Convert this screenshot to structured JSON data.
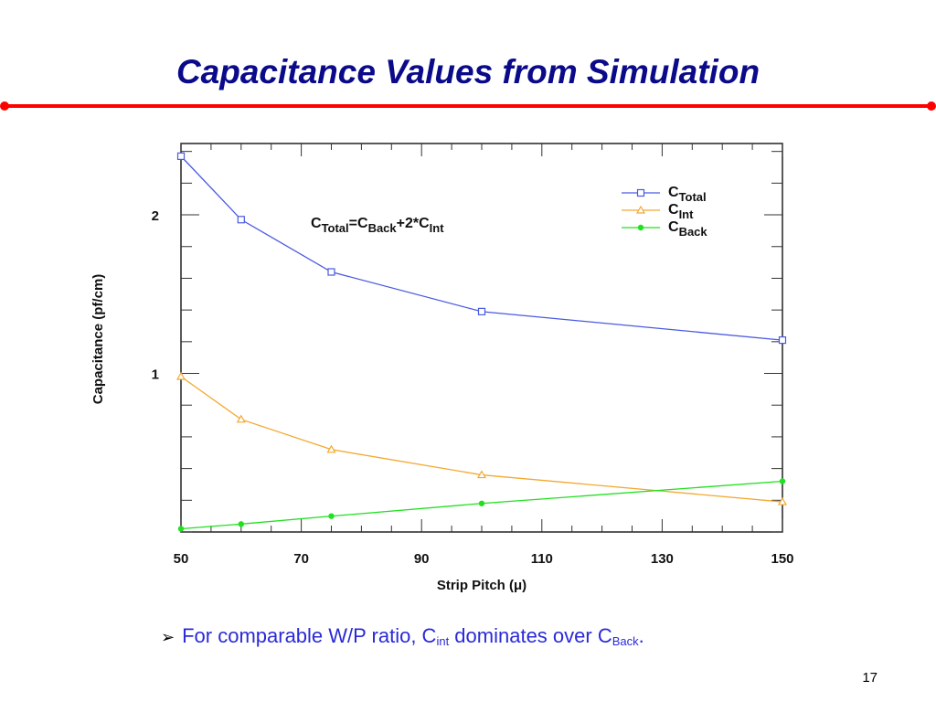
{
  "slide": {
    "title": "Capacitance Values from Simulation",
    "page_number": "17",
    "accent_color": "#ff0000",
    "title_color": "#0a0a8a"
  },
  "bullet": {
    "icon": "arrow-bullet-icon",
    "text_before": "For comparable W/P ratio, C",
    "sub_int": "int",
    "text_middle": " dominates over C",
    "sub_back": "Back",
    "text_end": "."
  },
  "chart_data": {
    "type": "line",
    "xlabel": "Strip Pitch (μ)",
    "ylabel": "Capacitance (pf/cm)",
    "xlim": [
      50,
      150
    ],
    "ylim": [
      0.0,
      2.45
    ],
    "x_ticks": [
      "50",
      "70",
      "90",
      "110",
      "130",
      "150"
    ],
    "y_ticks": [
      "1",
      "2"
    ],
    "grid": false,
    "legend_position": "top-right",
    "annotation": {
      "base": "C",
      "sub_total": "Total",
      "eq": "=C",
      "sub_back": "Back",
      "plus": "+2*C",
      "sub_int": "Int"
    },
    "series": [
      {
        "name": "C_Total",
        "legend_base": "C",
        "legend_sub": "Total",
        "marker": "square",
        "color": "#4a5ae0",
        "x": [
          50,
          60,
          75,
          100,
          150
        ],
        "y": [
          2.37,
          1.97,
          1.64,
          1.39,
          1.21
        ]
      },
      {
        "name": "C_Int",
        "legend_base": "C",
        "legend_sub": "Int",
        "marker": "triangle",
        "color": "#f4a830",
        "x": [
          50,
          60,
          75,
          100,
          150
        ],
        "y": [
          0.98,
          0.71,
          0.52,
          0.36,
          0.19
        ]
      },
      {
        "name": "C_Back",
        "legend_base": "C",
        "legend_sub": "Back",
        "marker": "dot",
        "color": "#20e020",
        "x": [
          50,
          60,
          75,
          100,
          150
        ],
        "y": [
          0.02,
          0.05,
          0.1,
          0.18,
          0.32
        ]
      }
    ]
  }
}
